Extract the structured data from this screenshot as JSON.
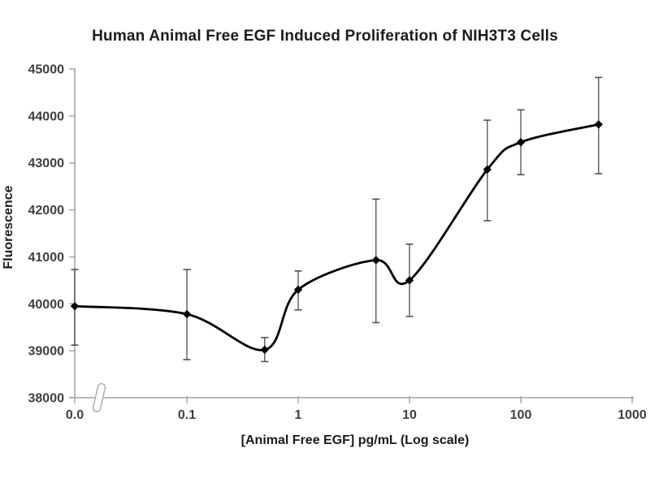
{
  "chart_data": {
    "type": "line",
    "title": "Human Animal Free EGF Induced Proliferation of NIH3T3 Cells",
    "xlabel": "[Animal Free EGF] pg/mL (Log scale)",
    "ylabel": "Fluorescence",
    "x_scale": "log",
    "x_axis_break": true,
    "grid": false,
    "legend": false,
    "marker": "diamond",
    "x_tick_labels": [
      "0.0",
      "0.1",
      "1",
      "10",
      "100",
      "1000"
    ],
    "x_tick_values": [
      0,
      0.1,
      1,
      10,
      100,
      1000
    ],
    "y_ticks": [
      38000,
      39000,
      40000,
      41000,
      42000,
      43000,
      44000,
      45000
    ],
    "ylim": [
      38000,
      45000
    ],
    "x": [
      0,
      0.1,
      0.5,
      1,
      5,
      10,
      50,
      100,
      500
    ],
    "y": [
      39950,
      39780,
      39020,
      40300,
      40930,
      40500,
      42860,
      43440,
      43820
    ],
    "y_err_up": [
      780,
      950,
      260,
      400,
      1300,
      770,
      1050,
      690,
      1000
    ],
    "y_err_down": [
      830,
      970,
      250,
      430,
      1330,
      770,
      1090,
      690,
      1050
    ],
    "colors": {
      "line": "#000000",
      "marker": "#000000",
      "error_bar": "#4f4f4f",
      "axis": "#a3a3a3",
      "tick_label": "#3f3f3f",
      "title_text": "#1b1b1b",
      "background": "#ffffff"
    }
  }
}
